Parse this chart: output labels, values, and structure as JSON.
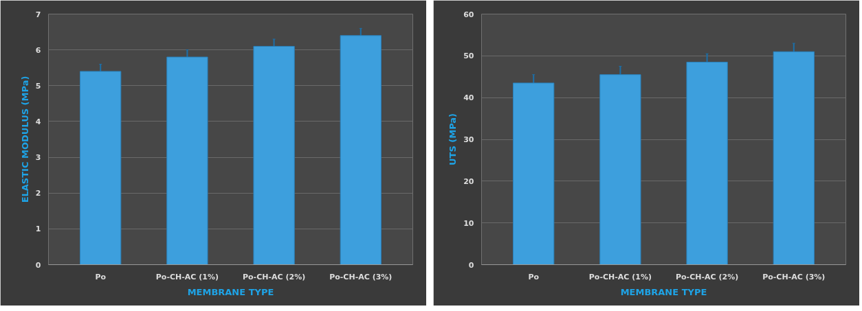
{
  "chart_data": [
    {
      "type": "bar",
      "categories": [
        "Po",
        "Po-CH-AC (1%)",
        "Po-CH-AC (2%)",
        "Po-CH-AC (3%)"
      ],
      "values": [
        5.4,
        5.8,
        6.1,
        6.4
      ],
      "errors": [
        0.2,
        0.2,
        0.2,
        0.2
      ],
      "color": "#3d9fdd",
      "xlabel": "MEMBRANE TYPE",
      "ylabel": "ELASTIC MODULUS (MPa)",
      "ylim": [
        0,
        7
      ],
      "yticks": [
        0,
        1,
        2,
        3,
        4,
        5,
        6,
        7
      ],
      "grid": "y"
    },
    {
      "type": "bar",
      "categories": [
        "Po",
        "Po-CH-AC (1%)",
        "Po-CH-AC (2%)",
        "Po-CH-AC (3%)"
      ],
      "values": [
        43.5,
        45.5,
        48.5,
        51
      ],
      "errors": [
        2,
        2,
        2,
        2
      ],
      "color": "#3d9fdd",
      "xlabel": "MEMBRANE TYPE",
      "ylabel": "UTS (MPa)",
      "ylim": [
        0,
        60
      ],
      "yticks": [
        0,
        10,
        20,
        30,
        40,
        50,
        60
      ],
      "grid": "y"
    }
  ]
}
